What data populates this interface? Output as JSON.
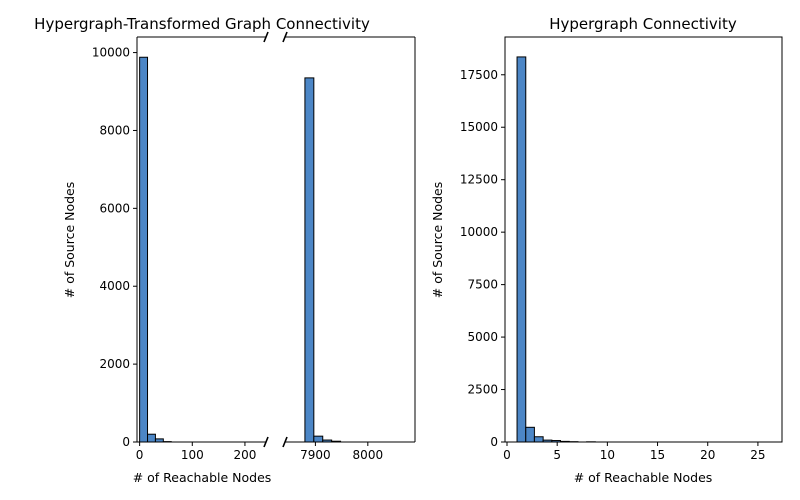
{
  "chart_data": [
    {
      "type": "bar",
      "title": "Hypergraph-Transformed Graph Connectivity",
      "xlabel": "# of Reachable Nodes",
      "ylabel": "# of Source Nodes",
      "broken_x_axis": true,
      "segments": [
        {
          "xlim": [
            -5,
            240
          ],
          "xticks": [
            0,
            100,
            200
          ],
          "bins": [
            {
              "x0": 0,
              "x1": 15,
              "value": 9880
            },
            {
              "x0": 15,
              "x1": 30,
              "value": 200
            },
            {
              "x0": 30,
              "x1": 45,
              "value": 80
            },
            {
              "x0": 45,
              "x1": 60,
              "value": 10
            }
          ]
        },
        {
          "xlim": [
            7842,
            8090
          ],
          "xticks": [
            7900,
            8000
          ],
          "bins": [
            {
              "x0": 7880,
              "x1": 7897,
              "value": 9350
            },
            {
              "x0": 7897,
              "x1": 7914,
              "value": 150
            },
            {
              "x0": 7914,
              "x1": 7931,
              "value": 50
            },
            {
              "x0": 7931,
              "x1": 7948,
              "value": 20
            }
          ]
        }
      ],
      "ylim": [
        0,
        10400
      ],
      "yticks": [
        0,
        2000,
        4000,
        6000,
        8000,
        10000
      ],
      "colors": {
        "bar_fill": "#4c86c6",
        "bar_edge": "#000000"
      }
    },
    {
      "type": "bar",
      "title": "Hypergraph Connectivity",
      "xlabel": "# of Reachable Nodes",
      "ylabel": "# of Source Nodes",
      "xlim": [
        -0.2,
        27.4
      ],
      "xticks": [
        0,
        5,
        10,
        15,
        20,
        25
      ],
      "ylim": [
        0,
        19300
      ],
      "yticks": [
        0,
        2500,
        5000,
        7500,
        10000,
        12500,
        15000,
        17500
      ],
      "bins": [
        {
          "x0": 1.0,
          "x1": 1.87,
          "value": 18350
        },
        {
          "x0": 1.87,
          "x1": 2.73,
          "value": 700
        },
        {
          "x0": 2.73,
          "x1": 3.6,
          "value": 250
        },
        {
          "x0": 3.6,
          "x1": 4.47,
          "value": 90
        },
        {
          "x0": 4.47,
          "x1": 5.33,
          "value": 70
        },
        {
          "x0": 5.33,
          "x1": 6.2,
          "value": 30
        },
        {
          "x0": 6.2,
          "x1": 7.07,
          "value": 15
        },
        {
          "x0": 7.93,
          "x1": 8.8,
          "value": 10
        }
      ],
      "colors": {
        "bar_fill": "#4c86c6",
        "bar_edge": "#000000"
      }
    }
  ]
}
